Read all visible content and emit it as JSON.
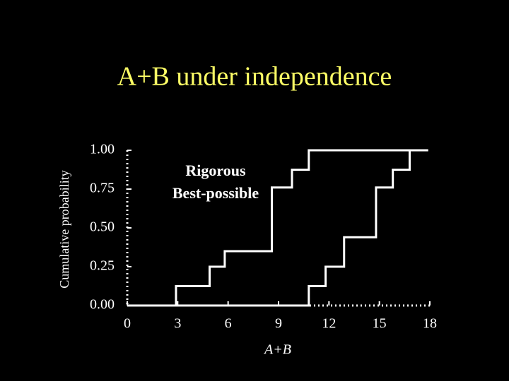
{
  "chart_data": {
    "type": "step",
    "title": "A+B under independence",
    "x_label": "A+B",
    "y_label": "Cumulative probability",
    "annotations": [
      "Rigorous",
      "Best-possible"
    ],
    "series": [
      {
        "color": "#ffffff",
        "x": [
          0,
          2.9,
          4.9,
          5.8,
          8.6,
          9.8,
          10.8,
          17.9
        ],
        "values": [
          0,
          0.125,
          0.25,
          0.35,
          0.76,
          0.875,
          1.0,
          1.0
        ]
      },
      {
        "color": "#ffffff",
        "x": [
          0,
          10.8,
          11.8,
          12.9,
          14.8,
          15.8,
          16.8,
          17.9
        ],
        "values": [
          0,
          0.125,
          0.25,
          0.44,
          0.76,
          0.875,
          1.0,
          1.0
        ]
      }
    ],
    "xlim": [
      0,
      18
    ],
    "xticks": [
      0,
      3,
      6,
      9,
      12,
      15,
      18
    ],
    "ylim": [
      0,
      1
    ],
    "yticks": [
      {
        "value": 0,
        "label": "0.00"
      },
      {
        "value": 0.25,
        "label": "0.25"
      },
      {
        "value": 0.5,
        "label": "0.50"
      },
      {
        "value": 0.75,
        "label": "0.75"
      },
      {
        "value": 1,
        "label": "1.00"
      }
    ]
  }
}
